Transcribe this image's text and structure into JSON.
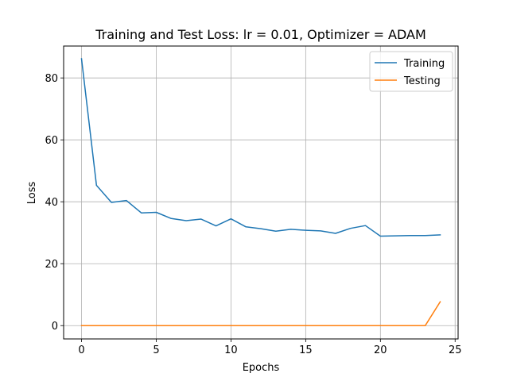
{
  "chart_data": {
    "type": "line",
    "title": "Training and Test Loss: lr = 0.01, Optimizer = ADAM",
    "xlabel": "Epochs",
    "ylabel": "Loss",
    "xlim": [
      -1.2,
      25.2
    ],
    "ylim": [
      -4.3,
      90.3
    ],
    "xticks": [
      0,
      5,
      10,
      15,
      20,
      25
    ],
    "yticks": [
      0,
      20,
      40,
      60,
      80
    ],
    "grid": true,
    "legend_position": "top-right",
    "x": [
      0,
      1,
      2,
      3,
      4,
      5,
      6,
      7,
      8,
      9,
      10,
      11,
      12,
      13,
      14,
      15,
      16,
      17,
      18,
      19,
      20,
      21,
      22,
      23,
      24
    ],
    "series": [
      {
        "name": "Training",
        "color": "#1f77b4",
        "values": [
          86.2,
          45.3,
          39.8,
          40.4,
          36.4,
          36.6,
          34.6,
          33.9,
          34.4,
          32.2,
          34.5,
          31.9,
          31.3,
          30.5,
          31.1,
          30.8,
          30.6,
          29.8,
          31.4,
          32.3,
          28.9,
          29.0,
          29.1,
          29.1,
          29.3
        ]
      },
      {
        "name": "Testing",
        "color": "#ff7f0e",
        "values": [
          0,
          0,
          0,
          0,
          0,
          0,
          0,
          0,
          0,
          0,
          0,
          0,
          0,
          0,
          0,
          0,
          0,
          0,
          0,
          0,
          0,
          0,
          0,
          0,
          7.7
        ]
      }
    ]
  }
}
